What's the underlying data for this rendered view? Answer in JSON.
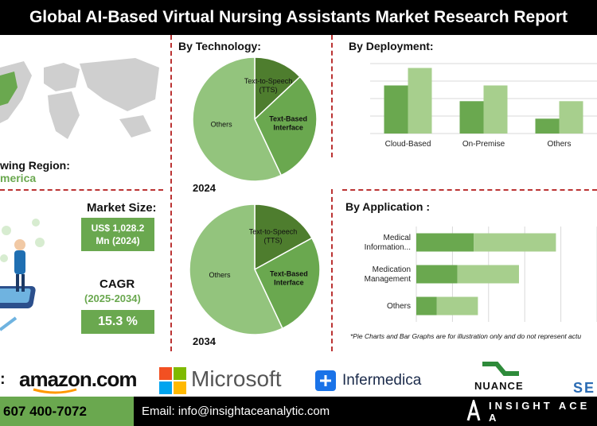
{
  "header": {
    "title": "Global AI-Based Virtual Nursing Assistants Market Research Report"
  },
  "region": {
    "label": "wing Region:",
    "value": "merica"
  },
  "market_size": {
    "label": "Market Size:",
    "value_line1": "US$ 1,028.2",
    "value_line2": "Mn (2024)"
  },
  "cagr": {
    "label": "CAGR",
    "period": "(2025-2034)",
    "value": "15.3 %"
  },
  "technology": {
    "title": "By Technology:",
    "year1": "2024",
    "year2": "2034"
  },
  "deployment": {
    "title": "By  Deployment:"
  },
  "application": {
    "title": "By Application :"
  },
  "disclaimer": "*Pie Charts and Bar Graphs are for illustration only and do not represent actu",
  "companies": {
    "colon": ":",
    "amazon": "amazon.com",
    "microsoft": "Microsoft",
    "infermedica": "Infermedica",
    "nuance": "NUANCE",
    "se": "SE"
  },
  "footer": {
    "phone": "607 400-7072",
    "email": "Email: info@insightaceanalytic.com",
    "brand": "INSIGHT ACE A"
  },
  "colors": {
    "dark_green": "#6aa84f",
    "light_green": "#a7cf8d",
    "pie_dark": "#4e7d2e",
    "pie_mid": "#6aa84f",
    "pie_light": "#93c47d"
  },
  "chart_data": [
    {
      "type": "pie",
      "title": "By Technology:",
      "year": "2024",
      "labels": [
        "Text-to-Speech (TTS)",
        "Text-Based Interface",
        "Others"
      ],
      "values": [
        13,
        30,
        57
      ]
    },
    {
      "type": "pie",
      "title": "By Technology:",
      "year": "2034",
      "labels": [
        "Text-to-Speech (TTS)",
        "Text-Based Interface",
        "Others"
      ],
      "values": [
        17,
        26,
        57
      ]
    },
    {
      "type": "bar",
      "title": "By  Deployment:",
      "categories": [
        "Cloud-Based",
        "On-Premise",
        "Others"
      ],
      "series": [
        {
          "values": [
            55,
            37,
            17
          ]
        },
        {
          "values": [
            75,
            55,
            37
          ]
        }
      ],
      "ylim": [
        0,
        80
      ],
      "grid": true
    },
    {
      "type": "bar",
      "orientation": "horizontal",
      "stacked": true,
      "title": "By Application :",
      "categories": [
        "Medical Information...",
        "Medication Management",
        "Others"
      ],
      "category_lines": [
        [
          "Medical",
          "Information..."
        ],
        [
          "Medication",
          "Management"
        ],
        [
          "Others"
        ]
      ],
      "series": [
        {
          "values": [
            70,
            50,
            25
          ]
        },
        {
          "values": [
            100,
            75,
            50
          ]
        }
      ],
      "xlim": [
        0,
        220
      ],
      "grid": true
    }
  ]
}
